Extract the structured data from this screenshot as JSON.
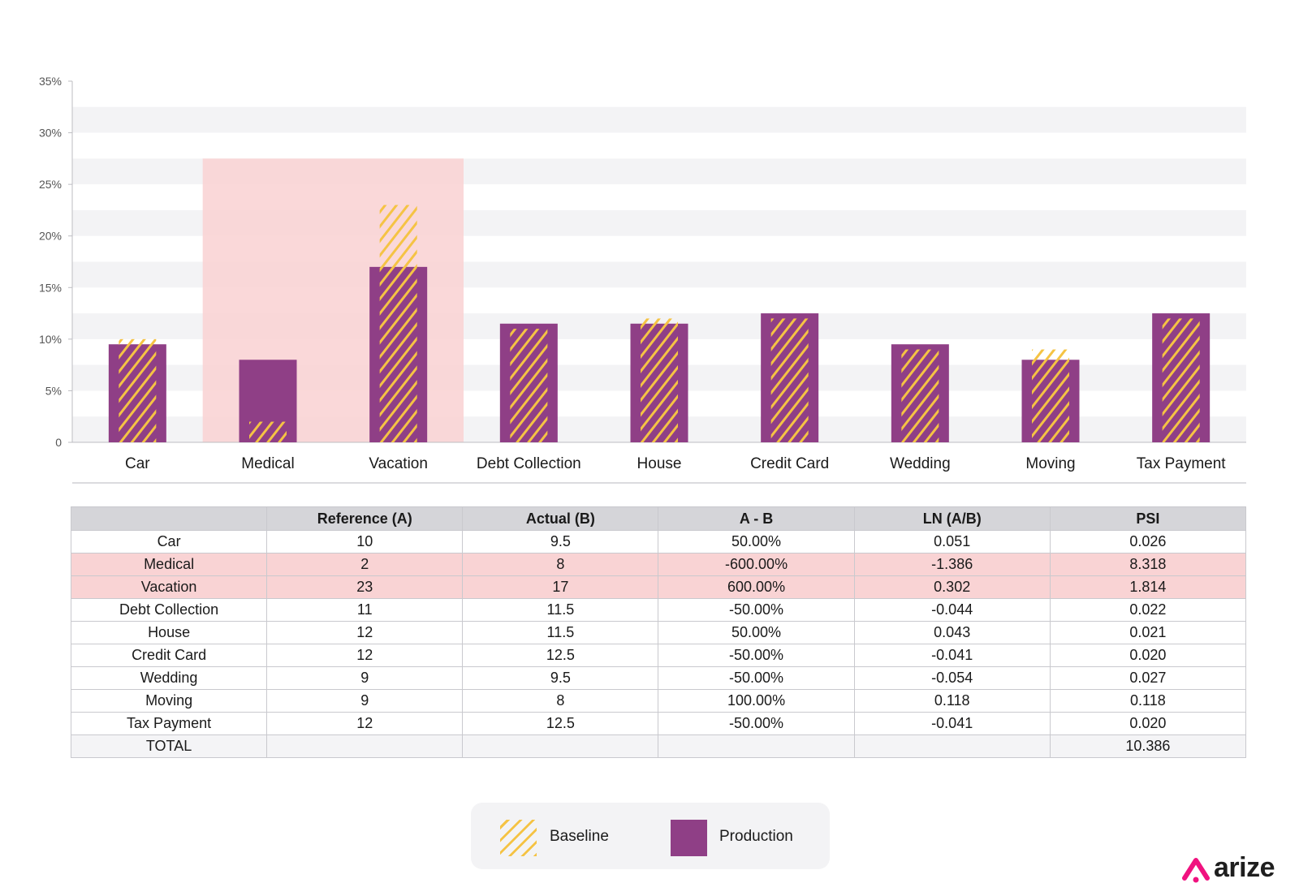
{
  "chart_data": {
    "type": "bar",
    "categories": [
      "Car",
      "Medical",
      "Vacation",
      "Debt Collection",
      "House",
      "Credit Card",
      "Wedding",
      "Moving",
      "Tax Payment"
    ],
    "series": [
      {
        "name": "Baseline",
        "values": [
          10,
          2,
          23,
          11,
          12,
          12,
          9,
          9,
          12
        ]
      },
      {
        "name": "Production",
        "values": [
          9.5,
          8,
          17,
          11.5,
          11.5,
          12.5,
          9.5,
          8,
          12.5
        ]
      }
    ],
    "highlighted_categories": [
      "Medical",
      "Vacation"
    ],
    "ylim": [
      0,
      35
    ],
    "yticks": [
      {
        "value": 0,
        "label": "0"
      },
      {
        "value": 5,
        "label": "5%"
      },
      {
        "value": 10,
        "label": "10%"
      },
      {
        "value": 15,
        "label": "15%"
      },
      {
        "value": 20,
        "label": "20%"
      },
      {
        "value": 25,
        "label": "25%"
      },
      {
        "value": 30,
        "label": "30%"
      },
      {
        "value": 35,
        "label": "35%"
      }
    ],
    "grid": "horizontal bands",
    "colors": {
      "baseline": "#f5c344",
      "production": "#8f3f86",
      "highlight": "#f9d3d4",
      "band": "#f3f3f5"
    }
  },
  "table": {
    "headers": [
      "",
      "Reference (A)",
      "Actual (B)",
      "A - B",
      "LN (A/B)",
      "PSI"
    ],
    "rows": [
      [
        "Car",
        "10",
        "9.5",
        "50.00%",
        "0.051",
        "0.026"
      ],
      [
        "Medical",
        "2",
        "8",
        "-600.00%",
        "-1.386",
        "8.318"
      ],
      [
        "Vacation",
        "23",
        "17",
        "600.00%",
        "0.302",
        "1.814"
      ],
      [
        "Debt Collection",
        "11",
        "11.5",
        "-50.00%",
        "-0.044",
        "0.022"
      ],
      [
        "House",
        "12",
        "11.5",
        "50.00%",
        "0.043",
        "0.021"
      ],
      [
        "Credit Card",
        "12",
        "12.5",
        "-50.00%",
        "-0.041",
        "0.020"
      ],
      [
        "Wedding",
        "9",
        "9.5",
        "-50.00%",
        "-0.054",
        "0.027"
      ],
      [
        "Moving",
        "9",
        "8",
        "100.00%",
        "0.118",
        "0.118"
      ],
      [
        "Tax Payment",
        "12",
        "12.5",
        "-50.00%",
        "-0.041",
        "0.020"
      ],
      [
        "TOTAL",
        "",
        "",
        "",
        "",
        "10.386"
      ]
    ],
    "highlight_rows": [
      "Medical",
      "Vacation"
    ],
    "total_row": "TOTAL"
  },
  "legend": {
    "baseline_label": "Baseline",
    "production_label": "Production"
  },
  "brand": {
    "logo_text": "arize",
    "accent_color": "#f0127f"
  }
}
